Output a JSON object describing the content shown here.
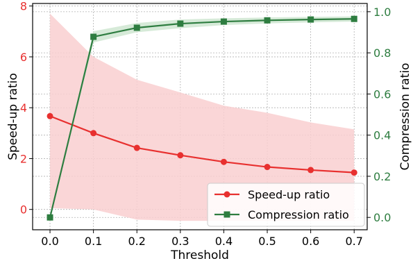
{
  "chart_data": {
    "type": "line",
    "title": "",
    "xlabel": "Threshold",
    "x": [
      0.0,
      0.1,
      0.2,
      0.3,
      0.4,
      0.5,
      0.6,
      0.7
    ],
    "x_ticks": [
      "0.0",
      "0.1",
      "0.2",
      "0.3",
      "0.4",
      "0.5",
      "0.6",
      "0.7"
    ],
    "xlim": [
      -0.04,
      0.73
    ],
    "grid": true,
    "legend_position": "lower-right",
    "left_axis": {
      "label": "Speed-up ratio",
      "color": "#e8302f",
      "ylim": [
        -0.8,
        8.1
      ],
      "ticks": [
        0,
        2,
        4,
        6,
        8
      ],
      "tick_labels": [
        "0",
        "2",
        "4",
        "6",
        "8"
      ]
    },
    "right_axis": {
      "label": "Compression ratio",
      "color": "#2e7d40",
      "ylim": [
        -0.06,
        1.04
      ],
      "ticks": [
        0.0,
        0.2,
        0.4,
        0.6,
        0.8,
        1.0
      ],
      "tick_labels": [
        "0.0",
        "0.2",
        "0.4",
        "0.6",
        "0.8",
        "1.0"
      ]
    },
    "series": [
      {
        "name": "Speed-up ratio",
        "axis": "left",
        "color": "#e8302f",
        "band_color": "#f9cfd0",
        "marker": "circle",
        "values": [
          3.67,
          3.0,
          2.42,
          2.13,
          1.87,
          1.67,
          1.55,
          1.45
        ],
        "band_upper": [
          7.7,
          6.0,
          5.1,
          4.6,
          4.08,
          3.8,
          3.42,
          3.15
        ],
        "band_lower": [
          0.05,
          0.0,
          -0.4,
          -0.45,
          -0.45,
          -0.45,
          -0.45,
          -0.45
        ]
      },
      {
        "name": "Compression ratio",
        "axis": "right",
        "color": "#2e7d40",
        "band_color": "#cfe6d1",
        "marker": "square",
        "values": [
          0.0,
          0.878,
          0.922,
          0.942,
          0.952,
          0.958,
          0.962,
          0.965
        ],
        "band_upper": [
          0.0,
          0.905,
          0.945,
          0.962,
          0.968,
          0.972,
          0.975,
          0.977
        ],
        "band_lower": [
          0.0,
          0.85,
          0.9,
          0.92,
          0.935,
          0.943,
          0.948,
          0.952
        ]
      }
    ]
  }
}
